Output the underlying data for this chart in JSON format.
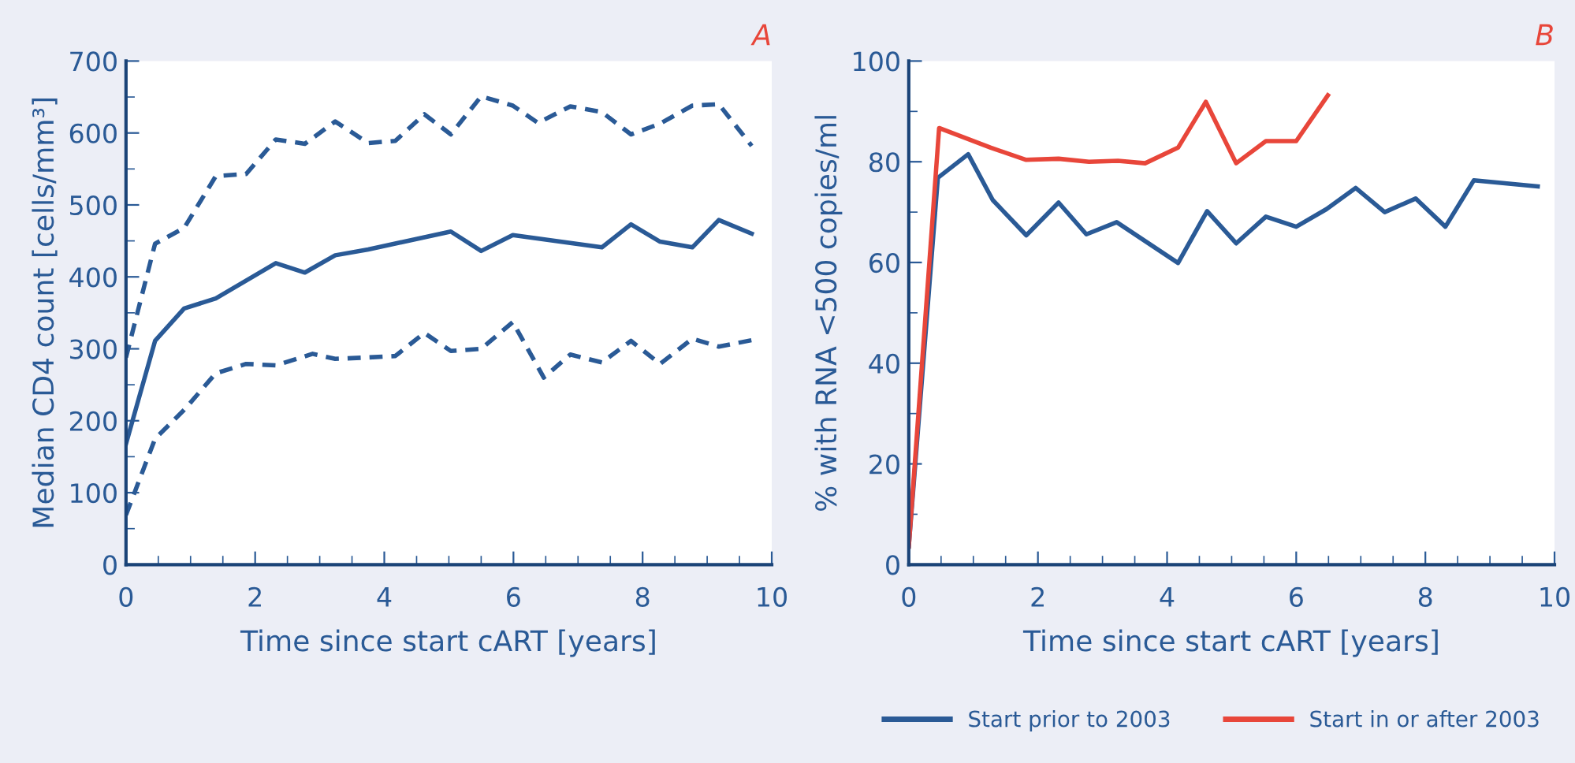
{
  "chart_data": [
    {
      "type": "line",
      "xlabel": "Time since start cART [years]",
      "ylabel": "Median CD4 count [cells/mm³]",
      "annotations": [
        "A"
      ],
      "xlim": [
        0,
        10
      ],
      "xticks": [
        0,
        2,
        4,
        6,
        8,
        10
      ],
      "ylim": [
        0,
        700
      ],
      "yticks": [
        0,
        100,
        200,
        300,
        400,
        500,
        600,
        700
      ],
      "grid": false,
      "legend": false,
      "series": [
        {
          "color": "#2a5a96",
          "line_style": "solid",
          "x": [
            0,
            0.45,
            0.9,
            1.39,
            2.32,
            2.77,
            3.24,
            3.75,
            5.03,
            5.5,
            5.99,
            7.37,
            7.82,
            8.27,
            8.77,
            9.18,
            9.69
          ],
          "values": [
            168,
            311,
            356,
            370,
            419,
            406,
            430,
            438,
            463,
            436,
            458,
            441,
            473,
            449,
            441,
            479,
            460
          ]
        },
        {
          "color": "#2a5a96",
          "line_style": "dashed",
          "x": [
            0,
            0.45,
            0.9,
            1.39,
            1.86,
            2.32,
            2.77,
            3.24,
            3.75,
            4.17,
            4.62,
            5.03,
            5.5,
            5.99,
            6.38,
            6.88,
            7.37,
            7.82,
            8.27,
            8.77,
            9.18,
            9.69
          ],
          "values": [
            288,
            446,
            468,
            540,
            543,
            591,
            585,
            616,
            586,
            589,
            626,
            598,
            651,
            638,
            614,
            637,
            629,
            598,
            613,
            638,
            640,
            582
          ]
        },
        {
          "color": "#2a5a96",
          "line_style": "dashed",
          "x": [
            0,
            0.45,
            0.9,
            1.39,
            1.86,
            2.32,
            2.89,
            3.24,
            3.75,
            4.17,
            4.62,
            5.03,
            5.5,
            5.99,
            6.47,
            6.88,
            7.37,
            7.82,
            8.27,
            8.77,
            9.18,
            9.69
          ],
          "values": [
            69,
            175,
            215,
            266,
            279,
            277,
            293,
            286,
            288,
            290,
            322,
            297,
            300,
            337,
            260,
            292,
            281,
            311,
            279,
            314,
            303,
            312
          ]
        }
      ]
    },
    {
      "type": "line",
      "xlabel": "Time since start cART [years]",
      "ylabel": "% with RNA <500 copies/ml",
      "annotations": [
        "B"
      ],
      "xlim": [
        0,
        10
      ],
      "xticks": [
        0,
        2,
        4,
        6,
        8,
        10
      ],
      "ylim": [
        0,
        100
      ],
      "yticks": [
        0,
        20,
        40,
        60,
        80,
        100
      ],
      "grid": false,
      "legend": "bottom",
      "series": [
        {
          "name": "Start prior to 2003",
          "color": "#2a5a96",
          "line_style": "solid",
          "x": [
            0,
            0.45,
            0.92,
            1.3,
            1.82,
            2.32,
            2.75,
            3.22,
            4.17,
            4.62,
            5.07,
            5.53,
            6.0,
            6.47,
            6.92,
            7.37,
            7.85,
            8.31,
            8.75,
            9.74
          ],
          "values": [
            3.6,
            76.8,
            81.5,
            72.4,
            65.4,
            71.9,
            65.6,
            68,
            59.9,
            70.2,
            63.8,
            69.1,
            67.1,
            70.6,
            74.8,
            70,
            72.7,
            67.1,
            76.3,
            75.1
          ]
        },
        {
          "name": "Start in or after 2003",
          "color": "#e8463a",
          "line_style": "solid",
          "x": [
            0,
            0.47,
            1.27,
            1.81,
            2.32,
            2.79,
            3.24,
            3.66,
            4.17,
            4.6,
            5.07,
            5.53,
            6.0,
            6.49
          ],
          "values": [
            3.6,
            86.7,
            82.8,
            80.4,
            80.6,
            80,
            80.2,
            79.7,
            82.8,
            91.9,
            79.7,
            84.1,
            84.1,
            93.2
          ]
        }
      ]
    }
  ]
}
